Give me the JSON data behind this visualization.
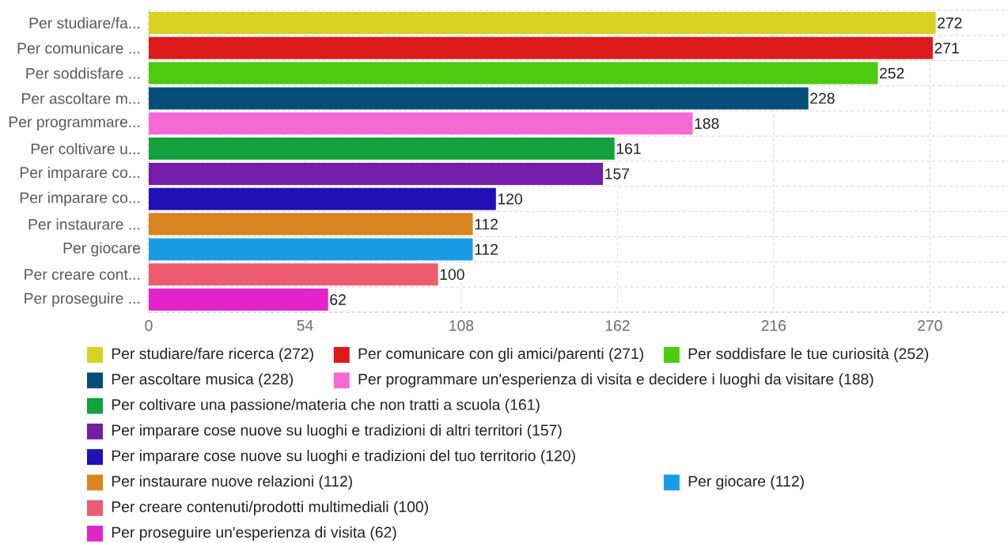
{
  "chart_data": {
    "type": "bar",
    "orientation": "horizontal",
    "stacked": true,
    "categories": [
      "Per studiare/fa...",
      "Per comunicare ...",
      "Per soddisfare ...",
      "Per ascoltare m...",
      "Per programmare...",
      "Per coltivare u...",
      "Per imparare co...",
      "Per imparare co...",
      "Per instaurare ...",
      "Per giocare",
      "Per creare cont...",
      "Per proseguire ..."
    ],
    "series": [
      {
        "name": "Per studiare/fare ricerca (272)",
        "color": "#d7d221",
        "values": [
          272,
          null,
          null,
          null,
          null,
          null,
          null,
          null,
          null,
          null,
          null,
          null
        ]
      },
      {
        "name": "Per comunicare con gli amici/parenti (271)",
        "color": "#dc1a1a",
        "values": [
          null,
          271,
          null,
          null,
          null,
          null,
          null,
          null,
          null,
          null,
          null,
          null
        ]
      },
      {
        "name": "Per soddisfare le tue curiosità (252)",
        "color": "#4ecb0f",
        "values": [
          null,
          null,
          252,
          null,
          null,
          null,
          null,
          null,
          null,
          null,
          null,
          null
        ]
      },
      {
        "name": "Per ascoltare musica (228)",
        "color": "#064e78",
        "values": [
          null,
          null,
          null,
          228,
          null,
          null,
          null,
          null,
          null,
          null,
          null,
          null
        ]
      },
      {
        "name": "Per programmare un'esperienza di visita e decidere i luoghi da visitare (188)",
        "color": "#f569d6",
        "values": [
          null,
          null,
          null,
          null,
          188,
          null,
          null,
          null,
          null,
          null,
          null,
          null
        ]
      },
      {
        "name": "Per coltivare una passione/materia che non tratti a scuola (161)",
        "color": "#12a13c",
        "values": [
          null,
          null,
          null,
          null,
          null,
          161,
          null,
          null,
          null,
          null,
          null,
          null
        ]
      },
      {
        "name": "Per imparare cose nuove su luoghi e tradizioni di altri territori (157)",
        "color": "#751ca9",
        "values": [
          null,
          null,
          null,
          null,
          null,
          null,
          157,
          null,
          null,
          null,
          null,
          null
        ]
      },
      {
        "name": "Per imparare cose nuove su luoghi e tradizioni del tuo territorio (120)",
        "color": "#220fb5",
        "values": [
          null,
          null,
          null,
          null,
          null,
          null,
          null,
          120,
          null,
          null,
          null,
          null
        ]
      },
      {
        "name": "Per instaurare nuove relazioni (112)",
        "color": "#d8841f",
        "values": [
          null,
          null,
          null,
          null,
          null,
          null,
          null,
          null,
          112,
          null,
          null,
          null
        ]
      },
      {
        "name": "Per giocare (112)",
        "color": "#1a9be6",
        "values": [
          null,
          null,
          null,
          null,
          null,
          null,
          null,
          null,
          null,
          112,
          null,
          null
        ]
      },
      {
        "name": "Per creare contenuti/prodotti multimediali (100)",
        "color": "#ed5b6e",
        "values": [
          null,
          null,
          null,
          null,
          null,
          null,
          null,
          null,
          null,
          null,
          100,
          null
        ]
      },
      {
        "name": "Per proseguire un'esperienza di visita (62)",
        "color": "#e424c8",
        "values": [
          null,
          null,
          null,
          null,
          null,
          null,
          null,
          null,
          null,
          null,
          null,
          62
        ]
      }
    ],
    "xlim": [
      0,
      297
    ],
    "xticks": [
      0,
      54,
      108,
      162,
      216,
      270
    ],
    "grid": true,
    "legend": "bottom",
    "data_labels": true
  }
}
